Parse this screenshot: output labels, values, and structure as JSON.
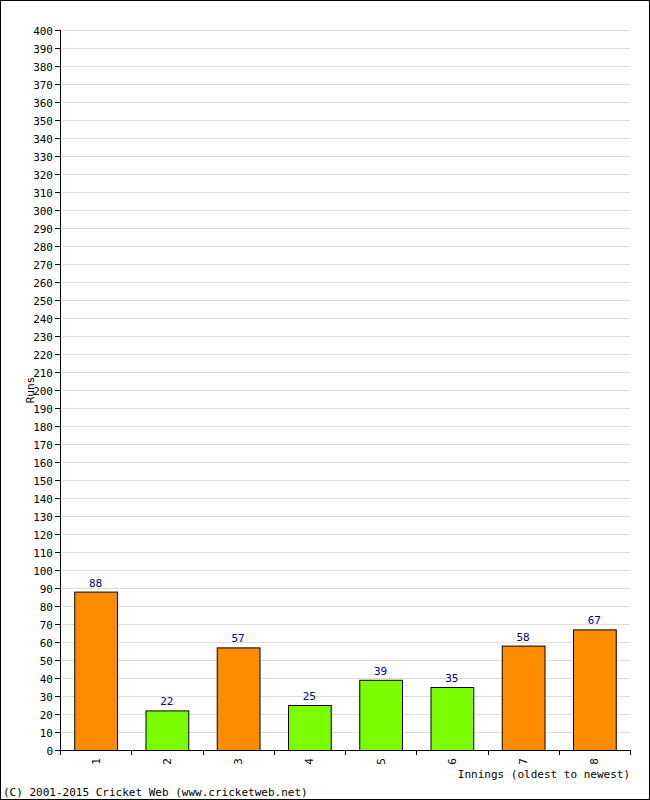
{
  "chart_data": {
    "type": "bar",
    "x_label": "Innings (oldest to newest)",
    "y_label": "Runs",
    "footer": "(C) 2001-2015 Cricket Web (www.cricketweb.net)",
    "categories": [
      "1",
      "2",
      "3",
      "4",
      "5",
      "6",
      "7",
      "8"
    ],
    "values": [
      88,
      22,
      57,
      25,
      39,
      35,
      58,
      67
    ],
    "colors": [
      "#ff8c00",
      "#7cfc00",
      "#ff8c00",
      "#7cfc00",
      "#7cfc00",
      "#7cfc00",
      "#ff8c00",
      "#ff8c00"
    ],
    "ylim": [
      0,
      400
    ],
    "yticks": [
      0,
      10,
      20,
      30,
      40,
      50,
      60,
      70,
      80,
      90,
      100,
      110,
      120,
      130,
      140,
      150,
      160,
      170,
      180,
      190,
      200,
      210,
      220,
      230,
      240,
      250,
      260,
      270,
      280,
      290,
      300,
      310,
      320,
      330,
      340,
      350,
      360,
      370,
      380,
      390,
      400
    ],
    "grid": true,
    "data_labels": true
  }
}
